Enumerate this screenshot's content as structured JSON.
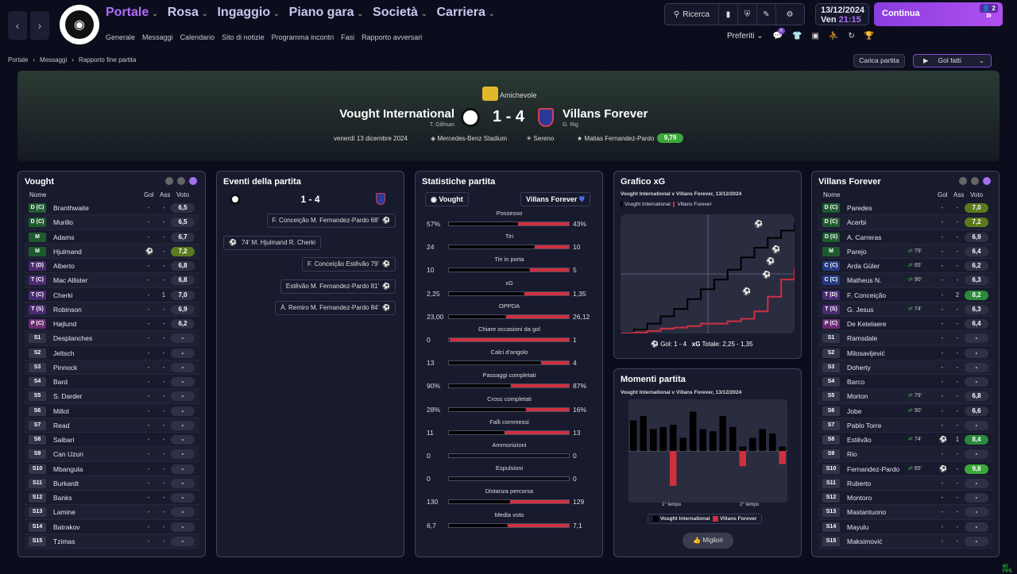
{
  "nav": {
    "main": [
      {
        "label": "Portale",
        "active": true
      },
      {
        "label": "Rosa"
      },
      {
        "label": "Ingaggio"
      },
      {
        "label": "Piano gara"
      },
      {
        "label": "Società"
      },
      {
        "label": "Carriera"
      }
    ],
    "sub": [
      "Generale",
      "Messaggi",
      "Calendario",
      "Sito di notizie",
      "Programma incontri",
      "Fasi",
      "Rapporto avversari"
    ],
    "search": "Ricerca",
    "date": "13/12/2024",
    "day": "Ven",
    "time": "21:15",
    "continue": "Continua",
    "badge": "2",
    "preferiti": "Preferiti",
    "notif": "6"
  },
  "breadcrumb": [
    "Portale",
    "Messaggi",
    "Rapporto fine partita"
  ],
  "actions": {
    "load": "Carica partita",
    "goals": "Gol fatti"
  },
  "match": {
    "competition": "Amichevole",
    "home": "Vought International",
    "home_manager": "T. Gillman",
    "away": "Villans Forever",
    "away_manager": "G. Rig",
    "score": "1 - 4",
    "date": "venerdì 13 dicembre 2024",
    "stadium": "Mercedes-Benz Stadium",
    "weather": "Sereno",
    "motm": "Matias Fernandez-Pardo",
    "motm_rating": "9,79"
  },
  "home_panel": {
    "title": "Vought",
    "h_name": "Nome",
    "h_gol": "Gol",
    "h_ass": "Ass",
    "h_voto": "Voto",
    "players": [
      {
        "pos": "D (C)",
        "name": "Branthwaite",
        "gol": "-",
        "ass": "-",
        "rat": "6,5",
        "color": "#2e3046",
        "pc": "#1f5a2e"
      },
      {
        "pos": "D (C)",
        "name": "Murillo",
        "gol": "-",
        "ass": "-",
        "rat": "6,5",
        "color": "#2e3046",
        "pc": "#1f5a2e"
      },
      {
        "pos": "M",
        "name": "Adams",
        "gol": "-",
        "ass": "-",
        "rat": "6,7",
        "color": "#2e3046",
        "pc": "#1f5a2e"
      },
      {
        "pos": "M",
        "name": "Hjulmand",
        "gol": "⚽",
        "ass": "-",
        "rat": "7,2",
        "color": "#5a7a1c",
        "pc": "#1f5a2e"
      },
      {
        "pos": "T (D)",
        "name": "Alberto",
        "gol": "-",
        "ass": "-",
        "rat": "6,8",
        "color": "#2e3046",
        "pc": "#4a2a70"
      },
      {
        "pos": "T (C)",
        "name": "Mac Allister",
        "gol": "-",
        "ass": "-",
        "rat": "6,8",
        "color": "#2e3046",
        "pc": "#4a2a70"
      },
      {
        "pos": "T (C)",
        "name": "Cherki",
        "gol": "-",
        "ass": "1",
        "rat": "7,0",
        "color": "#2e3046",
        "pc": "#4a2a70"
      },
      {
        "pos": "T (S)",
        "name": "Robinson",
        "gol": "-",
        "ass": "-",
        "rat": "6,9",
        "color": "#2e3046",
        "pc": "#4a2a70"
      },
      {
        "pos": "P (C)",
        "name": "Højlund",
        "gol": "-",
        "ass": "-",
        "rat": "6,2",
        "color": "#2e3046",
        "pc": "#6a2a70"
      },
      {
        "pos": "S1",
        "name": "Desplanches",
        "gol": "-",
        "ass": "-",
        "rat": "-",
        "color": "#2e3046",
        "pc": "#33354a"
      },
      {
        "pos": "S2",
        "name": "Jeltsch",
        "gol": "-",
        "ass": "-",
        "rat": "-",
        "color": "#2e3046",
        "pc": "#33354a"
      },
      {
        "pos": "S3",
        "name": "Pinnock",
        "gol": "-",
        "ass": "-",
        "rat": "-",
        "color": "#2e3046",
        "pc": "#33354a"
      },
      {
        "pos": "S4",
        "name": "Bard",
        "gol": "-",
        "ass": "-",
        "rat": "-",
        "color": "#2e3046",
        "pc": "#33354a"
      },
      {
        "pos": "S5",
        "name": "S. Darder",
        "gol": "-",
        "ass": "-",
        "rat": "-",
        "color": "#2e3046",
        "pc": "#33354a"
      },
      {
        "pos": "S6",
        "name": "Millot",
        "gol": "-",
        "ass": "-",
        "rat": "-",
        "color": "#2e3046",
        "pc": "#33354a"
      },
      {
        "pos": "S7",
        "name": "Read",
        "gol": "-",
        "ass": "-",
        "rat": "-",
        "color": "#2e3046",
        "pc": "#33354a"
      },
      {
        "pos": "S8",
        "name": "Saibari",
        "gol": "-",
        "ass": "-",
        "rat": "-",
        "color": "#2e3046",
        "pc": "#33354a"
      },
      {
        "pos": "S9",
        "name": "Can Uzun",
        "gol": "-",
        "ass": "-",
        "rat": "-",
        "color": "#2e3046",
        "pc": "#33354a"
      },
      {
        "pos": "S10",
        "name": "Mbangula",
        "gol": "-",
        "ass": "-",
        "rat": "-",
        "color": "#2e3046",
        "pc": "#33354a"
      },
      {
        "pos": "S11",
        "name": "Burkardt",
        "gol": "-",
        "ass": "-",
        "rat": "-",
        "color": "#2e3046",
        "pc": "#33354a"
      },
      {
        "pos": "S12",
        "name": "Banks",
        "gol": "-",
        "ass": "-",
        "rat": "-",
        "color": "#2e3046",
        "pc": "#33354a"
      },
      {
        "pos": "S13",
        "name": "Lamine",
        "gol": "-",
        "ass": "-",
        "rat": "-",
        "color": "#2e3046",
        "pc": "#33354a"
      },
      {
        "pos": "S14",
        "name": "Batrakov",
        "gol": "-",
        "ass": "-",
        "rat": "-",
        "color": "#2e3046",
        "pc": "#33354a"
      },
      {
        "pos": "S15",
        "name": "Tzimas",
        "gol": "-",
        "ass": "-",
        "rat": "-",
        "color": "#2e3046",
        "pc": "#33354a"
      }
    ]
  },
  "events": {
    "title": "Eventi della partita",
    "score": "1 - 4",
    "items": [
      {
        "side": "away",
        "text": "F. Conceição  M. Fernandez-Pardo  68'"
      },
      {
        "side": "home",
        "text": "74'  M. Hjulmand  R. Cherki"
      },
      {
        "side": "away",
        "text": "F. Conceição  Estêvão  79'"
      },
      {
        "side": "away",
        "text": "Estêvão  M. Fernandez-Pardo  81'"
      },
      {
        "side": "away",
        "text": "Á. Remiro  M. Fernandez-Pardo  84'"
      }
    ]
  },
  "stats": {
    "title": "Statistiche partita",
    "home": "Vought",
    "away": "Villans Forever",
    "rows": [
      {
        "label": "Possesso",
        "l": "57%",
        "r": "43%",
        "lv": 57,
        "rv": 43
      },
      {
        "label": "Tiri",
        "l": "24",
        "r": "10",
        "lv": 24,
        "rv": 10
      },
      {
        "label": "Tiri in porta",
        "l": "10",
        "r": "5",
        "lv": 10,
        "rv": 5
      },
      {
        "label": "xG",
        "l": "2,25",
        "r": "1,35",
        "lv": 2.25,
        "rv": 1.35
      },
      {
        "label": "OPPDA",
        "l": "23,00",
        "r": "26,12",
        "lv": 23,
        "rv": 26.12
      },
      {
        "label": "Chiare occasioni da gol",
        "l": "0",
        "r": "1",
        "lv": 0,
        "rv": 1
      },
      {
        "label": "Calci d'angolo",
        "l": "13",
        "r": "4",
        "lv": 13,
        "rv": 4
      },
      {
        "label": "Passaggi completati",
        "l": "90%",
        "r": "87%",
        "lv": 90,
        "rv": 87
      },
      {
        "label": "Cross completati",
        "l": "28%",
        "r": "16%",
        "lv": 28,
        "rv": 16
      },
      {
        "label": "Falli commessi",
        "l": "11",
        "r": "13",
        "lv": 11,
        "rv": 13
      },
      {
        "label": "Ammonizioni",
        "l": "0",
        "r": "0",
        "lv": 0,
        "rv": 0
      },
      {
        "label": "Espulsioni",
        "l": "0",
        "r": "0",
        "lv": 0,
        "rv": 0
      },
      {
        "label": "Distanza percorsa",
        "l": "130",
        "r": "129",
        "lv": 130,
        "rv": 129
      },
      {
        "label": "Media voto",
        "l": "6,7",
        "r": "7,1",
        "lv": 6.7,
        "rv": 7.1
      }
    ]
  },
  "xg": {
    "title": "Grafico xG",
    "subtitle": "Vought International v Villans Forever, 13/12/2024",
    "legend_home": "Vought International",
    "legend_away": "Villans Forever",
    "gol_label": "Gol: 1 - 4",
    "xg_label": "xG",
    "total_label": "Totale:  2,25 - 1,35"
  },
  "moments": {
    "title": "Momenti partita",
    "subtitle": "Vought International v Villans Forever, 13/12/2024",
    "first": "1° tempo",
    "second": "2° tempo",
    "legend_home": "Vought International",
    "legend_away": "Villans Forever",
    "best": "Migliori"
  },
  "chart_data": [
    {
      "type": "line",
      "title": "Grafico xG",
      "series": [
        {
          "name": "Vought International",
          "color": "#000000",
          "values": [
            0.0,
            0.08,
            0.2,
            0.35,
            0.5,
            0.7,
            0.9,
            1.1,
            1.3,
            1.55,
            1.75,
            1.95,
            2.1,
            2.25
          ]
        },
        {
          "name": "Villans Forever",
          "color": "#cf3040",
          "values": [
            0.0,
            0.02,
            0.05,
            0.1,
            0.12,
            0.15,
            0.2,
            0.2,
            0.25,
            0.3,
            0.45,
            0.75,
            1.1,
            1.35
          ]
        }
      ]
    },
    {
      "type": "bar",
      "title": "Momenti partita",
      "series": [
        {
          "name": "Vought International",
          "values": [
            0.7,
            0.8,
            0.5,
            0.55,
            0.6,
            0.3,
            0.9,
            0.5,
            0.45,
            0.8,
            0.55,
            0.1,
            0.3,
            0.5,
            0.4,
            0.1
          ]
        },
        {
          "name": "Villans Forever",
          "values": [
            0,
            0,
            0,
            0,
            0.8,
            0,
            0,
            0,
            0,
            0,
            0,
            0.35,
            0,
            0,
            0,
            0.3
          ]
        }
      ]
    }
  ],
  "away_panel": {
    "title": "Villans Forever",
    "h_name": "Nome",
    "h_gol": "Gol",
    "h_ass": "Ass",
    "h_voto": "Voto",
    "players": [
      {
        "pos": "D (C)",
        "name": "Paredes",
        "gol": "-",
        "ass": "-",
        "rat": "7,0",
        "color": "#5a7a1c",
        "pc": "#1f5a2e",
        "sub": ""
      },
      {
        "pos": "D (C)",
        "name": "Acerbi",
        "gol": "-",
        "ass": "-",
        "rat": "7,2",
        "color": "#5a7a1c",
        "pc": "#1f5a2e",
        "sub": ""
      },
      {
        "pos": "D (S)",
        "name": "A. Carreras",
        "gol": "-",
        "ass": "-",
        "rat": "6,9",
        "color": "#2e3046",
        "pc": "#1f5a2e",
        "sub": ""
      },
      {
        "pos": "M",
        "name": "Parejo",
        "gol": "-",
        "ass": "-",
        "rat": "6,4",
        "color": "#2e3046",
        "pc": "#1f5a2e",
        "sub": "79'"
      },
      {
        "pos": "C (C)",
        "name": "Arda Güler",
        "gol": "-",
        "ass": "-",
        "rat": "6,2",
        "color": "#2e3046",
        "pc": "#243a80",
        "sub": "65'"
      },
      {
        "pos": "C (C)",
        "name": "Matheus N.",
        "gol": "-",
        "ass": "-",
        "rat": "6,3",
        "color": "#2e3046",
        "pc": "#243a80",
        "sub": "90'"
      },
      {
        "pos": "T (D)",
        "name": "F. Conceição",
        "gol": "-",
        "ass": "2",
        "rat": "8,2",
        "color": "#2a8a3a",
        "pc": "#4a2a70",
        "sub": ""
      },
      {
        "pos": "T (S)",
        "name": "G. Jesus",
        "gol": "-",
        "ass": "-",
        "rat": "6,3",
        "color": "#2e3046",
        "pc": "#4a2a70",
        "sub": "74'"
      },
      {
        "pos": "P (C)",
        "name": "De Ketelaere",
        "gol": "-",
        "ass": "-",
        "rat": "6,4",
        "color": "#2e3046",
        "pc": "#6a2a70",
        "sub": ""
      },
      {
        "pos": "S1",
        "name": "Ramsdale",
        "gol": "-",
        "ass": "-",
        "rat": "-",
        "color": "#2e3046",
        "pc": "#33354a",
        "sub": ""
      },
      {
        "pos": "S2",
        "name": "Milosavljević",
        "gol": "-",
        "ass": "-",
        "rat": "-",
        "color": "#2e3046",
        "pc": "#33354a",
        "sub": ""
      },
      {
        "pos": "S3",
        "name": "Doherty",
        "gol": "-",
        "ass": "-",
        "rat": "-",
        "color": "#2e3046",
        "pc": "#33354a",
        "sub": ""
      },
      {
        "pos": "S4",
        "name": "Barco",
        "gol": "-",
        "ass": "-",
        "rat": "-",
        "color": "#2e3046",
        "pc": "#33354a",
        "sub": ""
      },
      {
        "pos": "S5",
        "name": "Morton",
        "gol": "-",
        "ass": "-",
        "rat": "6,8",
        "color": "#2e3046",
        "pc": "#33354a",
        "sub": "79'"
      },
      {
        "pos": "S6",
        "name": "Jobe",
        "gol": "-",
        "ass": "-",
        "rat": "6,6",
        "color": "#2e3046",
        "pc": "#33354a",
        "sub": "90'"
      },
      {
        "pos": "S7",
        "name": "Pablo Torre",
        "gol": "-",
        "ass": "-",
        "rat": "-",
        "color": "#2e3046",
        "pc": "#33354a",
        "sub": ""
      },
      {
        "pos": "S8",
        "name": "Estêvão",
        "gol": "⚽",
        "ass": "1",
        "rat": "8,4",
        "color": "#2a8a3a",
        "pc": "#33354a",
        "sub": "74'"
      },
      {
        "pos": "S9",
        "name": "Rio",
        "gol": "-",
        "ass": "-",
        "rat": "-",
        "color": "#2e3046",
        "pc": "#33354a",
        "sub": ""
      },
      {
        "pos": "S10",
        "name": "Fernandez-Pardo",
        "gol": "⚽",
        "ass": "-",
        "rat": "9,8",
        "color": "#3aa83a",
        "pc": "#33354a",
        "sub": "65'"
      },
      {
        "pos": "S11",
        "name": "Ruberto",
        "gol": "-",
        "ass": "-",
        "rat": "-",
        "color": "#2e3046",
        "pc": "#33354a",
        "sub": ""
      },
      {
        "pos": "S12",
        "name": "Montoro",
        "gol": "-",
        "ass": "-",
        "rat": "-",
        "color": "#2e3046",
        "pc": "#33354a",
        "sub": ""
      },
      {
        "pos": "S13",
        "name": "Mastantuono",
        "gol": "-",
        "ass": "-",
        "rat": "-",
        "color": "#2e3046",
        "pc": "#33354a",
        "sub": ""
      },
      {
        "pos": "S14",
        "name": "Mayulu",
        "gol": "-",
        "ass": "-",
        "rat": "-",
        "color": "#2e3046",
        "pc": "#33354a",
        "sub": ""
      },
      {
        "pos": "S15",
        "name": "Maksimović",
        "gol": "-",
        "ass": "-",
        "rat": "-",
        "color": "#2e3046",
        "pc": "#33354a",
        "sub": ""
      }
    ]
  },
  "fps": "60 FPS"
}
